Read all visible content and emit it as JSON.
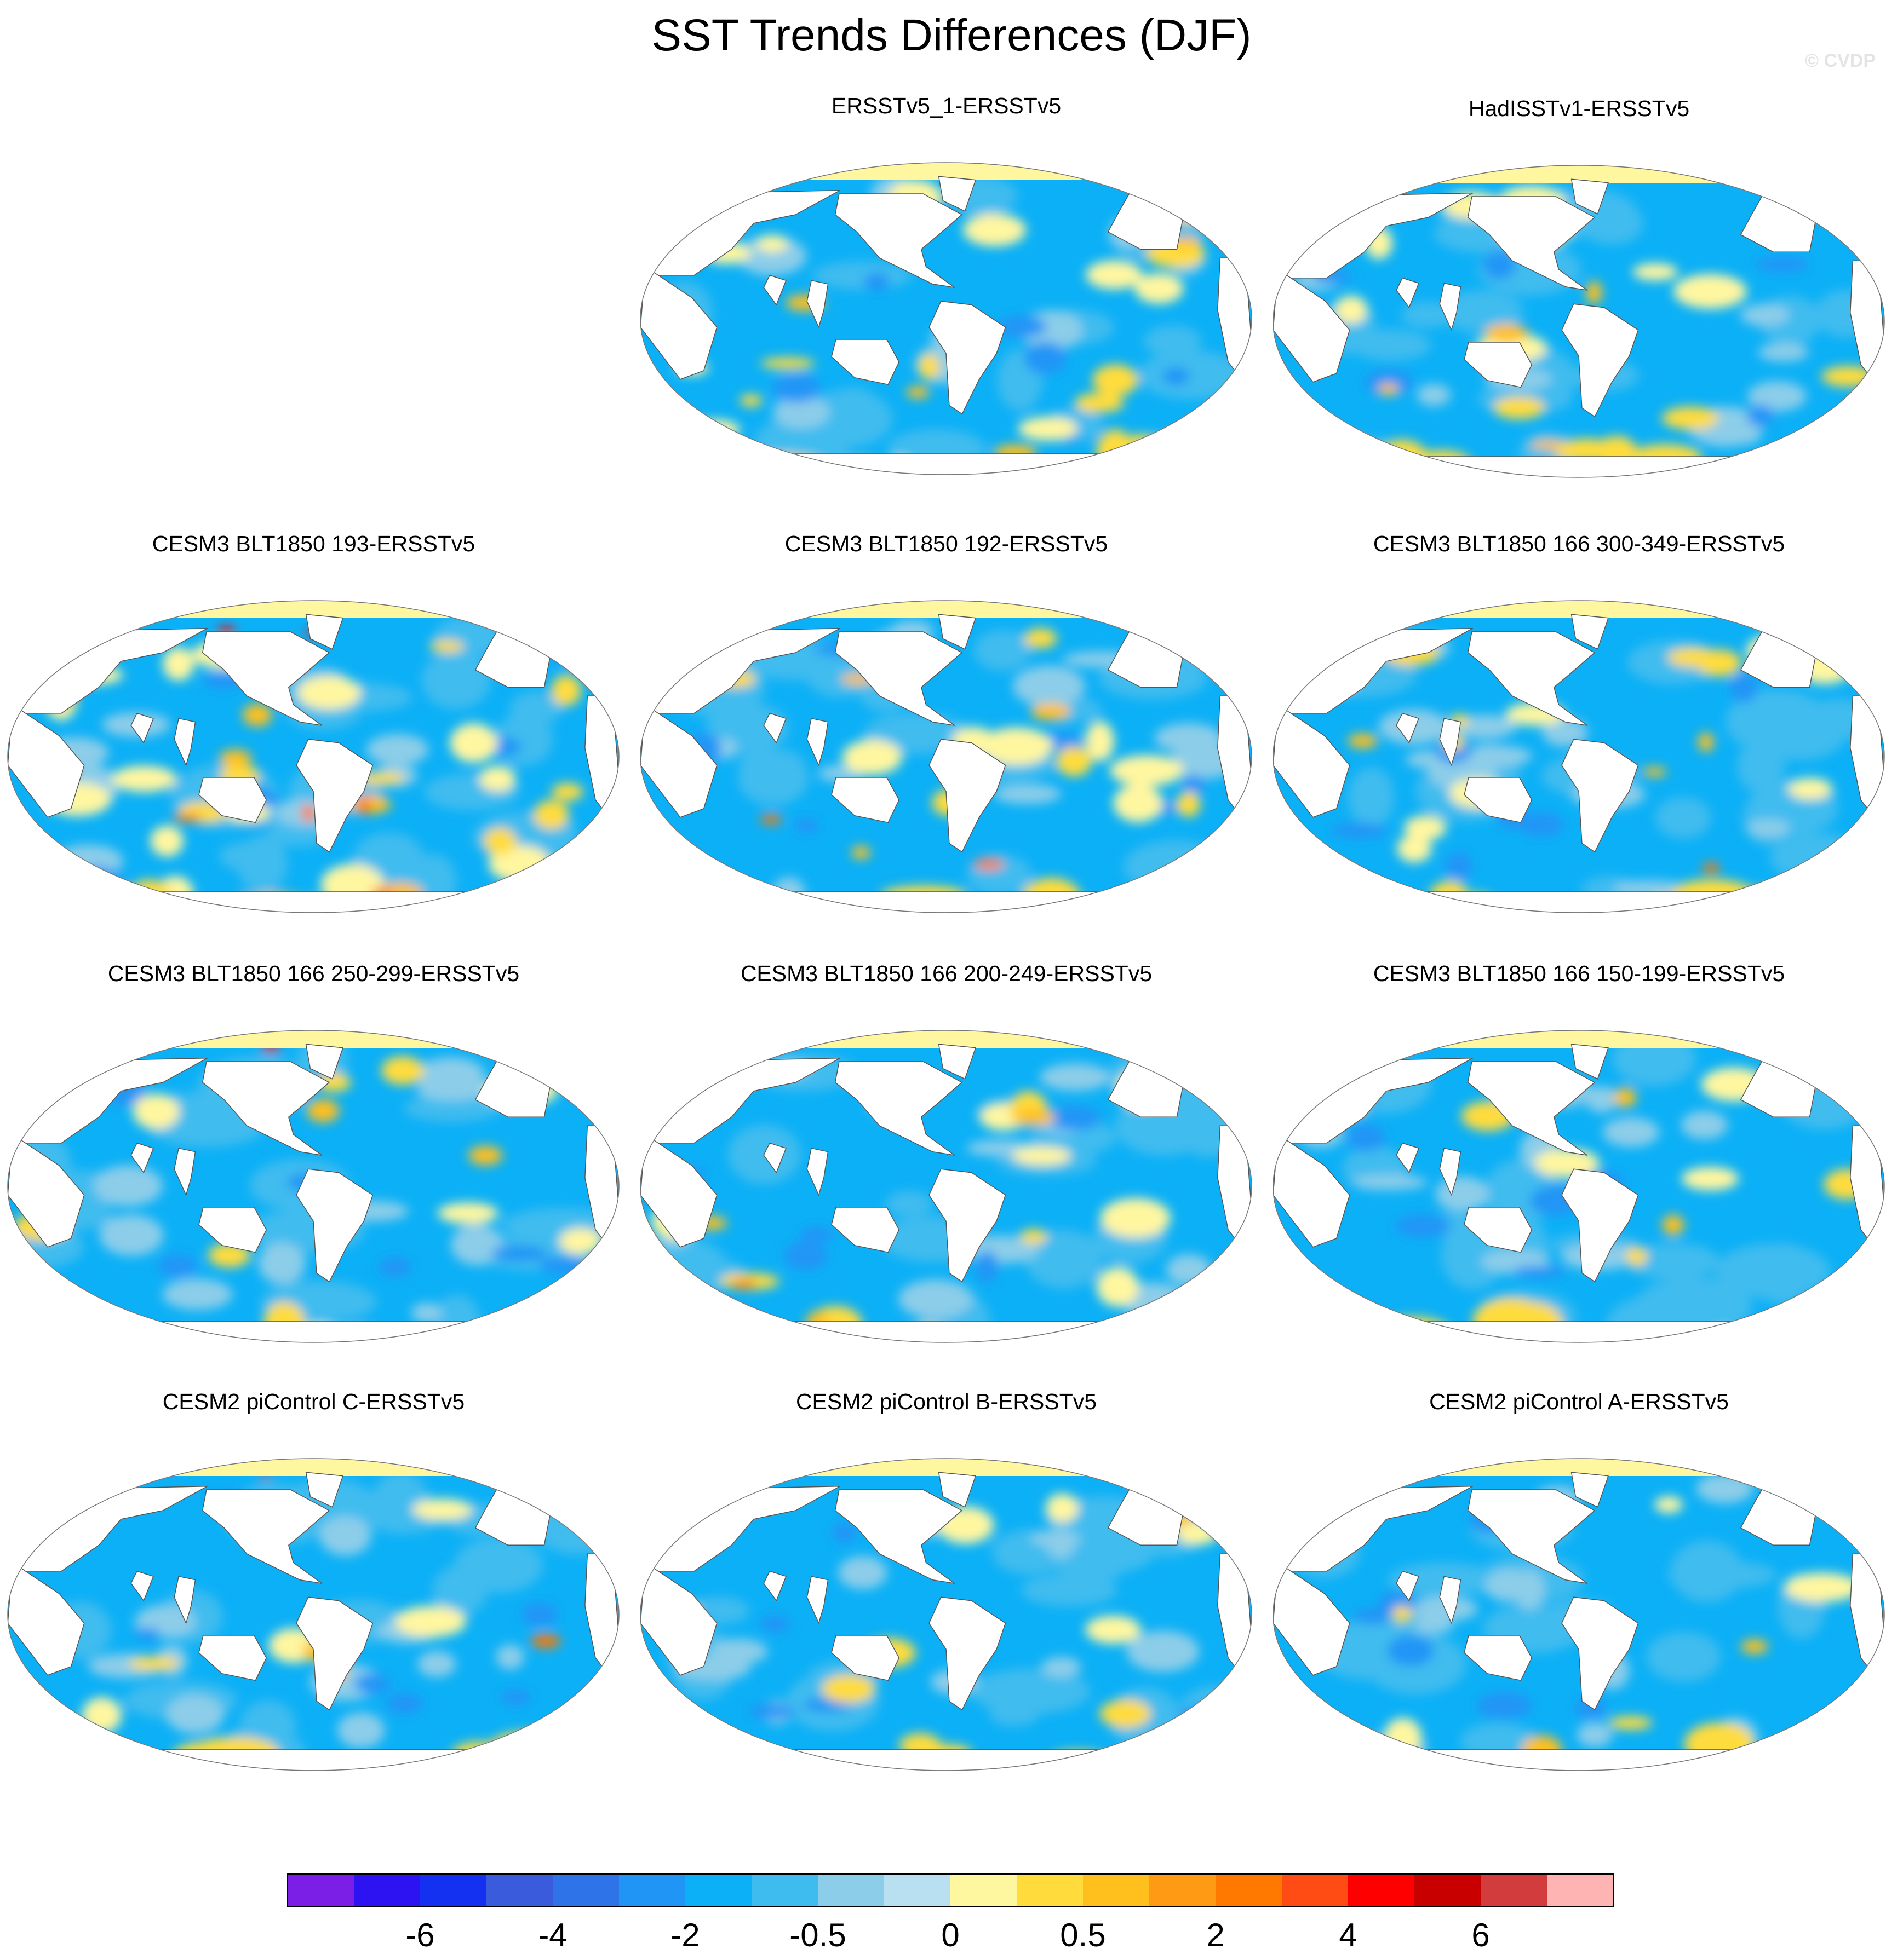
{
  "title": "SST Trends Differences (DJF)",
  "watermark": "© CVDP",
  "panels": [
    {
      "title": "ERSSTv5_1-ERSSTv5",
      "seed": 3,
      "warm": 0.35,
      "hot": 0.0
    },
    {
      "title": "HadISSTv1-ERSSTv5",
      "seed": 7,
      "warm": 0.3,
      "hot": 0.0
    },
    {
      "title": "CESM3 BLT1850 193-ERSSTv5",
      "seed": 11,
      "warm": 0.5,
      "hot": 0.06
    },
    {
      "title": "CESM3 BLT1850 192-ERSSTv5",
      "seed": 17,
      "warm": 0.28,
      "hot": 0.03
    },
    {
      "title": "CESM3 BLT1850 166 300-349-ERSSTv5",
      "seed": 23,
      "warm": 0.25,
      "hot": 0.01
    },
    {
      "title": "CESM3 BLT1850 166 250-299-ERSSTv5",
      "seed": 29,
      "warm": 0.16,
      "hot": 0.01
    },
    {
      "title": "CESM3 BLT1850 166 200-249-ERSSTv5",
      "seed": 31,
      "warm": 0.2,
      "hot": 0.01
    },
    {
      "title": "CESM3 BLT1850 166 150-199-ERSSTv5",
      "seed": 37,
      "warm": 0.14,
      "hot": 0.0
    },
    {
      "title": "CESM2 piControl C-ERSSTv5",
      "seed": 41,
      "warm": 0.12,
      "hot": 0.01
    },
    {
      "title": "CESM2 piControl B-ERSSTv5",
      "seed": 43,
      "warm": 0.13,
      "hot": 0.01
    },
    {
      "title": "CESM2 piControl A-ERSSTv5",
      "seed": 47,
      "warm": 0.1,
      "hot": 0.0
    }
  ],
  "colorbar": {
    "colors": [
      "#7b1ee6",
      "#2d13f2",
      "#1430f0",
      "#3a5bdb",
      "#2f73e8",
      "#2095f6",
      "#0cb0f6",
      "#3fbcef",
      "#8ccde9",
      "#b8e0f1",
      "#fff6a0",
      "#ffdc3c",
      "#ffc01e",
      "#ff9a14",
      "#ff7800",
      "#ff4b14",
      "#ff0000",
      "#c80000",
      "#d23c3c",
      "#ffb4b4"
    ],
    "labels": [
      "-6",
      "-4",
      "-2",
      "-0.5",
      "0",
      "0.5",
      "2",
      "4",
      "6"
    ],
    "label_boundaries": [
      2,
      4,
      6,
      8,
      10,
      12,
      14,
      16,
      18
    ]
  }
}
